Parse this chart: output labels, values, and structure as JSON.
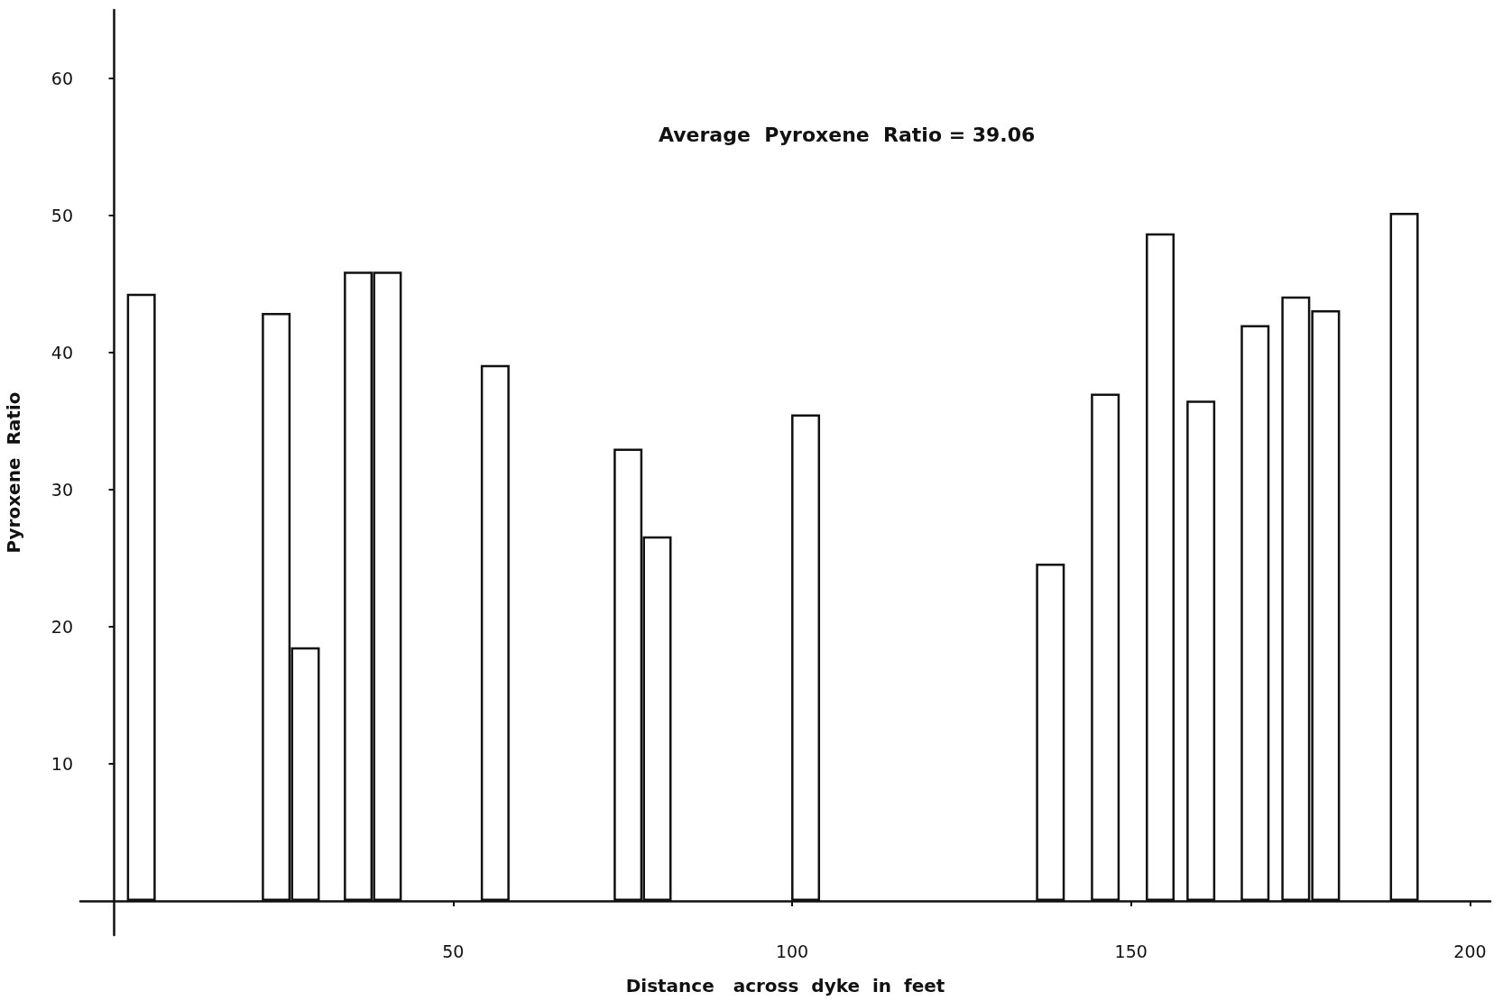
{
  "chart_data": {
    "type": "bar",
    "xlabel": "Distance   across  dyke  in  feet",
    "ylabel": "Pyroxene  Ratio",
    "annotations": [
      "Average  Pyroxene  Ratio = 39.06"
    ],
    "x": [
      4.0,
      23.9,
      28.2,
      36.0,
      40.3,
      56.2,
      75.8,
      80.1,
      102.0,
      138.1,
      146.2,
      154.3,
      160.3,
      168.3,
      174.3,
      178.7,
      190.3
    ],
    "values": [
      44.3,
      42.9,
      18.5,
      45.9,
      45.9,
      39.1,
      33.0,
      26.6,
      35.5,
      24.6,
      37.0,
      48.7,
      36.5,
      42.0,
      44.1,
      43.1,
      50.2
    ],
    "color": "#ffffff",
    "xlim": [
      -5,
      203
    ],
    "xticks": [
      50,
      100,
      150,
      200
    ],
    "ylim": [
      -2.5,
      65
    ],
    "yticks": [
      10,
      20,
      30,
      40,
      50,
      60
    ],
    "grid": false
  }
}
